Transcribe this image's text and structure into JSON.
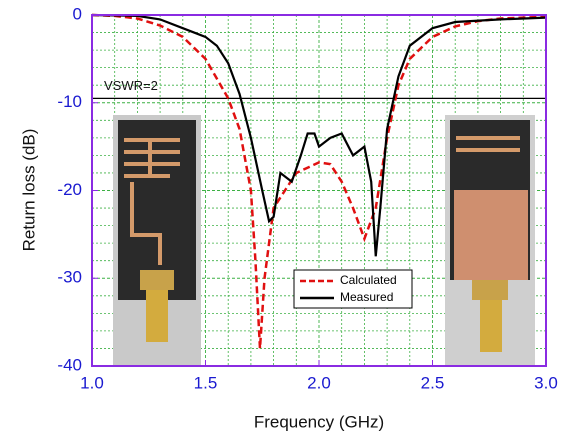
{
  "chart_data": {
    "type": "line",
    "x_label": "Frequency (GHz)",
    "y_label": "Return loss (dB)",
    "xlim": [
      1.0,
      3.0
    ],
    "ylim": [
      -40,
      0
    ],
    "xticks": [
      {
        "value": 1.0,
        "label": "1.0"
      },
      {
        "value": 1.5,
        "label": "1.5"
      },
      {
        "value": 2.0,
        "label": "2.0"
      },
      {
        "value": 2.5,
        "label": "2.5"
      },
      {
        "value": 3.0,
        "label": "3.0"
      }
    ],
    "yticks": [
      0,
      -10,
      -20,
      -30,
      -40
    ],
    "grid": true,
    "reference_line": {
      "value": -9.5,
      "label": "VSWR=2"
    },
    "series": [
      {
        "name": "Calculated",
        "color": "#e01010",
        "dash": true,
        "x": [
          1.0,
          1.1,
          1.2,
          1.3,
          1.4,
          1.5,
          1.6,
          1.65,
          1.7,
          1.72,
          1.74,
          1.76,
          1.8,
          1.85,
          1.9,
          2.0,
          2.05,
          2.1,
          2.15,
          2.2,
          2.25,
          2.3,
          2.35,
          2.4,
          2.5,
          2.6,
          2.7,
          2.8,
          3.0
        ],
        "values": [
          0,
          -0.1,
          -0.4,
          -1.2,
          -2.5,
          -5,
          -9.5,
          -13,
          -20,
          -28,
          -38,
          -30,
          -22,
          -20,
          -18,
          -16.8,
          -17,
          -19,
          -22,
          -25.5,
          -22,
          -14,
          -8,
          -5,
          -2.5,
          -1.3,
          -0.7,
          -0.4,
          -0.2
        ]
      },
      {
        "name": "Measured",
        "color": "#000000",
        "dash": false,
        "x": [
          1.0,
          1.2,
          1.3,
          1.4,
          1.45,
          1.5,
          1.55,
          1.6,
          1.65,
          1.7,
          1.75,
          1.78,
          1.8,
          1.83,
          1.88,
          1.92,
          1.95,
          1.98,
          2.0,
          2.05,
          2.1,
          2.15,
          2.2,
          2.23,
          2.25,
          2.27,
          2.3,
          2.35,
          2.4,
          2.5,
          2.6,
          2.8,
          3.0
        ],
        "values": [
          0,
          -0.1,
          -0.5,
          -1.5,
          -2,
          -2.5,
          -3.5,
          -5.5,
          -9,
          -14,
          -20,
          -23.5,
          -23,
          -18,
          -19,
          -16,
          -13.5,
          -13.5,
          -15,
          -14,
          -13.5,
          -16,
          -15,
          -19,
          -27.5,
          -22,
          -13,
          -7,
          -3.5,
          -1.5,
          -0.8,
          -0.5,
          -0.3
        ]
      }
    ]
  }
}
